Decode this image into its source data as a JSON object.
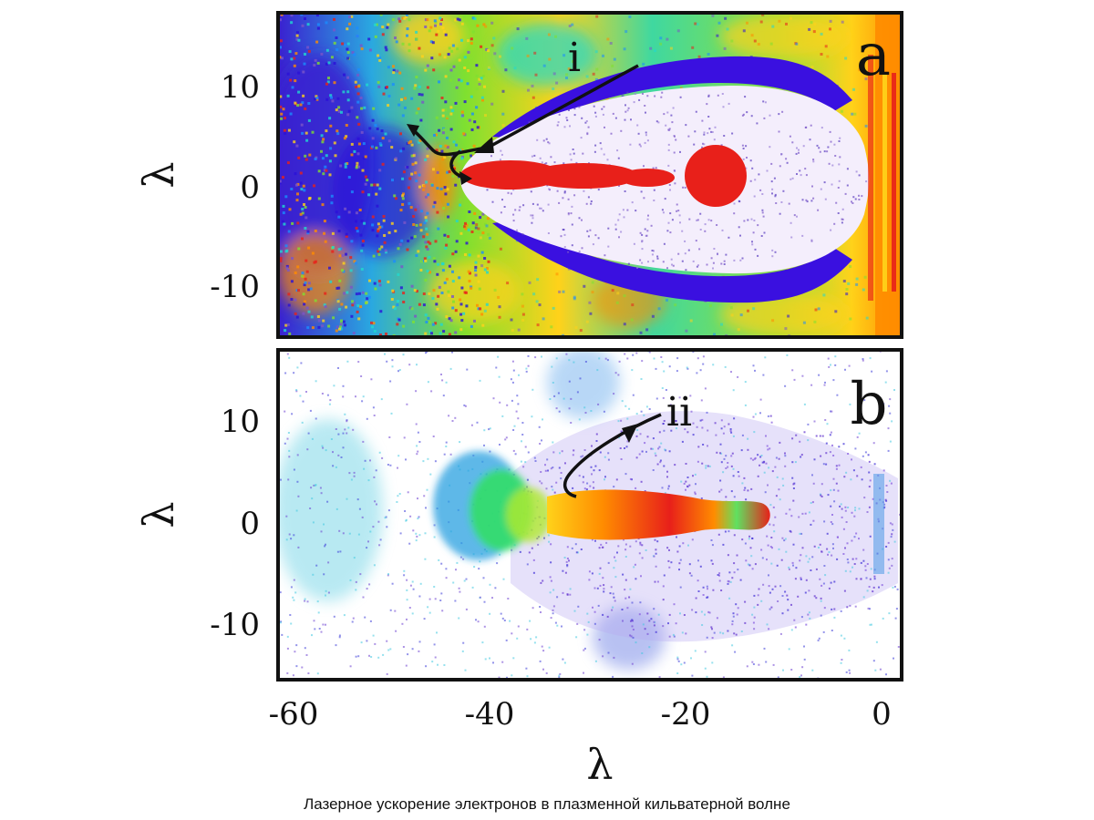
{
  "caption": "Лазерное ускорение электронов в плазменной кильватерной волне",
  "chart_data": [
    {
      "type": "scatter",
      "panel_label": "a",
      "annotation": "i",
      "xlabel": "",
      "ylabel": "λ",
      "xlim": [
        -62,
        2
      ],
      "ylim": [
        -16,
        16
      ],
      "y_ticks": [
        10,
        0,
        -10
      ],
      "y_tick_labels": [
        "10",
        "0",
        "-10"
      ],
      "colors": [
        "#2b10d8",
        "#7a55c8",
        "#e8201a",
        "#ff8c00",
        "#ffd21a",
        "#7fe030",
        "#20d8d0",
        "#1a8cff"
      ]
    },
    {
      "type": "scatter",
      "panel_label": "b",
      "annotation": "ii",
      "xlabel": "λ",
      "ylabel": "λ",
      "xlim": [
        -62,
        2
      ],
      "ylim": [
        -16,
        16
      ],
      "x_ticks": [
        -60,
        -40,
        -20,
        0
      ],
      "x_tick_labels": [
        "-60",
        "-40",
        "-20",
        "0"
      ],
      "y_ticks": [
        10,
        0,
        -10
      ],
      "y_tick_labels": [
        "10",
        "0",
        "-10"
      ],
      "colors": [
        "#6a3cd0",
        "#3a3ad8",
        "#40c8e0",
        "#30e060",
        "#ffd21a",
        "#ff8c00",
        "#e8201a"
      ]
    }
  ]
}
